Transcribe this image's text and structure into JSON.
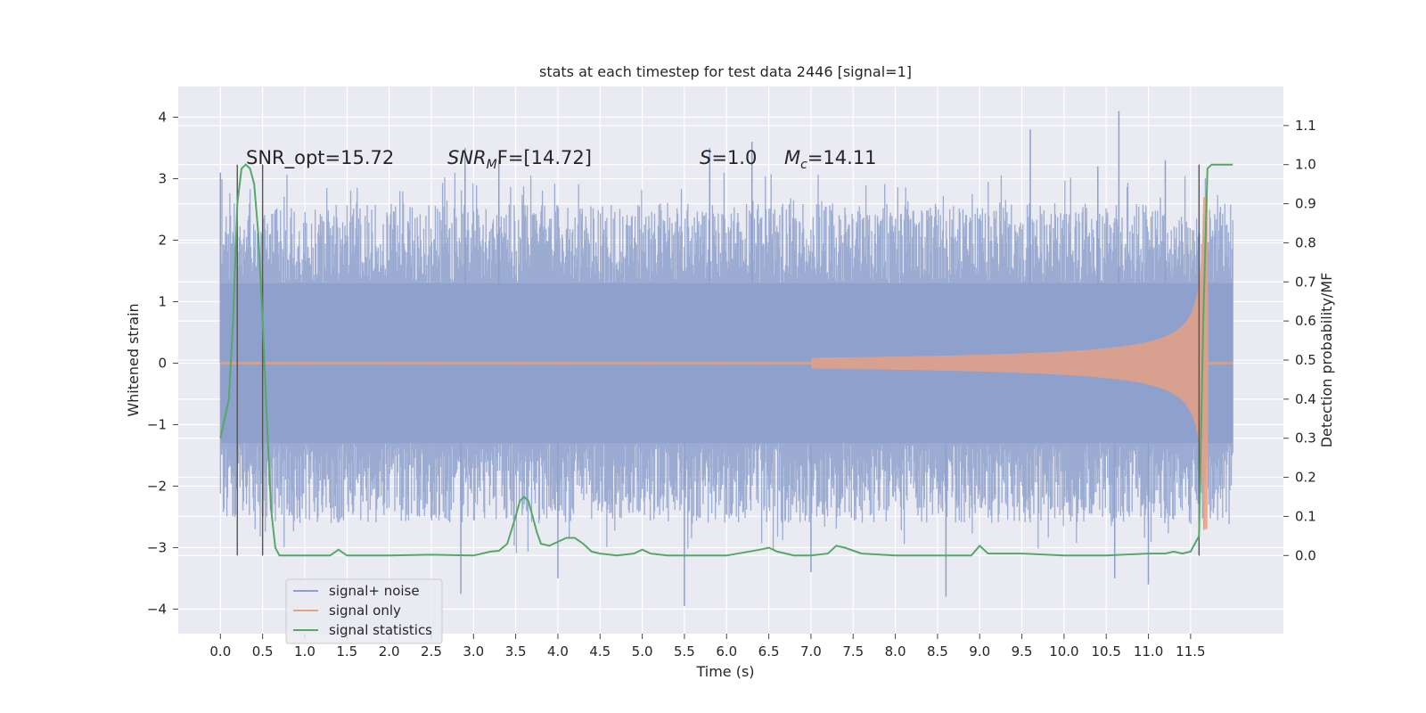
{
  "chart_data": {
    "type": "line",
    "title": "stats at each timestep for test data 2446 [signal=1]",
    "xlabel": "Time (s)",
    "ylabel_left": "Whitened strain",
    "ylabel_right": "Detection probability/MF",
    "xlim": [
      -0.5,
      12.6
    ],
    "ylim_left": [
      -4.4,
      4.5
    ],
    "ylim_right": [
      -0.2,
      1.2
    ],
    "x_ticks": [
      "0.0",
      "0.5",
      "1.0",
      "1.5",
      "2.0",
      "2.5",
      "3.0",
      "3.5",
      "4.0",
      "4.5",
      "5.0",
      "5.5",
      "6.0",
      "6.5",
      "7.0",
      "7.5",
      "8.0",
      "8.5",
      "9.0",
      "9.5",
      "10.0",
      "10.5",
      "11.0",
      "11.5"
    ],
    "y_ticks_left": [
      "4",
      "3",
      "2",
      "1",
      "0",
      "−1",
      "−2",
      "−3",
      "−4"
    ],
    "y_ticks_right": [
      "1.1",
      "1.0",
      "0.9",
      "0.8",
      "0.7",
      "0.6",
      "0.5",
      "0.4",
      "0.3",
      "0.2",
      "0.1",
      "0.0"
    ],
    "grid": true,
    "legend_position": "lower-left",
    "annotations": {
      "snr_opt": "SNR_opt=15.72",
      "snr_mf_prefix": "SNR",
      "snr_mf_sub": "M",
      "snr_mf_suffix": "F=[14.72]",
      "s_var": "S",
      "s_value": "=1.0",
      "mc_var": "M",
      "mc_sub": "c",
      "mc_value": "=14.11"
    },
    "series": [
      {
        "name": "signal+ noise",
        "color": "#8da0cb",
        "axis": "left",
        "description_range": [
          0.0,
          12.0
        ],
        "envelope_typical": 1.9,
        "peaks": [
          [
            0.0,
            3.1
          ],
          [
            2.9,
            3.5
          ],
          [
            3.3,
            3.3
          ],
          [
            5.8,
            3.5
          ],
          [
            6.3,
            3.6
          ],
          [
            9.6,
            3.8
          ],
          [
            10.65,
            4.1
          ],
          [
            10.4,
            3.2
          ],
          [
            11.2,
            3.3
          ],
          [
            2.85,
            -3.75
          ],
          [
            5.5,
            -3.95
          ],
          [
            4.0,
            -3.5
          ],
          [
            8.6,
            -3.8
          ],
          [
            11.0,
            -3.6
          ],
          [
            7.0,
            -3.4
          ],
          [
            10.6,
            -3.5
          ]
        ]
      },
      {
        "name": "signal only",
        "color": "#e5a184",
        "axis": "left",
        "chirp_start": 7.0,
        "chirp_end": 11.65,
        "max_amplitude": 2.7
      },
      {
        "name": "signal statistics",
        "color": "#55a868",
        "axis": "right",
        "x": [
          0.0,
          0.1,
          0.15,
          0.2,
          0.25,
          0.3,
          0.35,
          0.4,
          0.45,
          0.5,
          0.55,
          0.6,
          0.65,
          0.7,
          0.8,
          1.0,
          1.3,
          1.4,
          1.5,
          2.0,
          2.5,
          3.0,
          3.1,
          3.2,
          3.3,
          3.4,
          3.5,
          3.55,
          3.6,
          3.65,
          3.7,
          3.75,
          3.8,
          3.9,
          4.0,
          4.1,
          4.2,
          4.3,
          4.4,
          4.5,
          4.7,
          4.9,
          5.0,
          5.1,
          5.3,
          6.0,
          6.4,
          6.5,
          6.6,
          6.8,
          7.0,
          7.2,
          7.3,
          7.4,
          7.6,
          8.0,
          8.5,
          8.9,
          9.0,
          9.1,
          9.5,
          10.0,
          10.5,
          11.0,
          11.2,
          11.3,
          11.4,
          11.5,
          11.6,
          11.65,
          11.7,
          11.75,
          11.8,
          11.9,
          12.0
        ],
        "y": [
          0.3,
          0.4,
          0.6,
          0.9,
          0.99,
          1.0,
          0.99,
          0.95,
          0.82,
          0.6,
          0.35,
          0.12,
          0.02,
          0.0,
          0.0,
          0.0,
          0.0,
          0.015,
          0.0,
          0.0,
          0.002,
          0.0,
          0.005,
          0.01,
          0.012,
          0.03,
          0.1,
          0.14,
          0.15,
          0.14,
          0.1,
          0.06,
          0.03,
          0.025,
          0.035,
          0.045,
          0.045,
          0.03,
          0.01,
          0.005,
          0.0,
          0.005,
          0.015,
          0.005,
          0.0,
          0.0,
          0.015,
          0.02,
          0.01,
          0.0,
          0.0,
          0.005,
          0.025,
          0.02,
          0.005,
          0.0,
          0.0,
          0.0,
          0.025,
          0.005,
          0.005,
          0.0,
          0.0,
          0.005,
          0.005,
          0.01,
          0.005,
          0.01,
          0.05,
          0.6,
          0.99,
          1.0,
          1.0,
          1.0,
          1.0
        ]
      }
    ],
    "vertical_markers": [
      0.2,
      0.5,
      11.6
    ]
  }
}
